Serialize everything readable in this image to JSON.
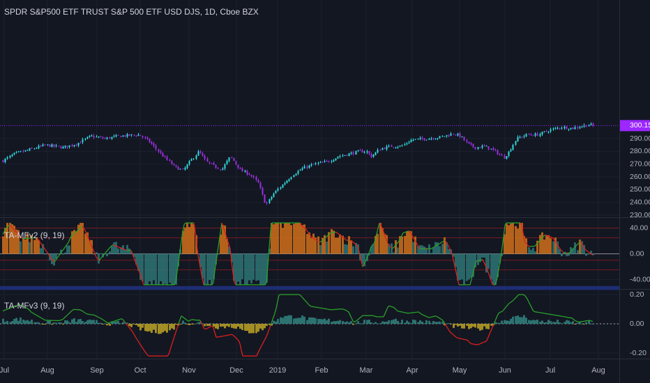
{
  "header": {
    "title": "SPDR S&P500 ETF TRUST S&P 500 ETF USD DJS, 1D, Cboe BZX"
  },
  "colors": {
    "background": "#131722",
    "grid": "#1c2030",
    "axis_text": "#b2b5be",
    "candle_up": "#33d9d9",
    "candle_down": "#9b2fe0",
    "last_price_line": "#9c27ff",
    "last_price_badge": "#9c27ff",
    "hist_orange": "#c66a1b",
    "hist_teal": "#2c6f70",
    "hist_blue": "#1e2d72",
    "line_green": "#29a329",
    "line_red": "#e0201d",
    "ref_red": "#b01b1b",
    "ref_white": "#c9c9c9",
    "hist3_yellow": "#b39b25",
    "hist3_teal": "#2f7c79",
    "dotted_white": "#c9c9c9"
  },
  "chart_data": [
    {
      "type": "candlestick",
      "name": "price",
      "y_ticks": [
        "230.00",
        "240.00",
        "250.00",
        "260.00",
        "270.00",
        "280.00",
        "290.00",
        "300.15"
      ],
      "ylim": [
        230,
        304
      ],
      "last_price": 300.15,
      "last_price_label": "300.15",
      "grid": true
    },
    {
      "type": "bar",
      "name": "TA-MFv2",
      "label": "TA-MFv2 (9, 19)",
      "y_ticks": [
        "40.00",
        "0.00",
        "-40.00"
      ],
      "ylim": [
        -55,
        55
      ],
      "reference_levels": [
        -40,
        -25,
        0,
        25,
        40
      ]
    },
    {
      "type": "bar",
      "name": "TA-MFv3",
      "label": "TA-MFv3 (9, 19)",
      "y_ticks": [
        "0.20",
        "0.00",
        "-0.20"
      ],
      "ylim": [
        -0.24,
        0.24
      ],
      "reference_levels": [
        0
      ]
    }
  ],
  "x_axis": {
    "labels": [
      "Jul",
      "Aug",
      "Sep",
      "Oct",
      "Nov",
      "Dec",
      "2019",
      "Feb",
      "Mar",
      "Apr",
      "May",
      "Jun",
      "Jul",
      "Aug"
    ]
  }
}
